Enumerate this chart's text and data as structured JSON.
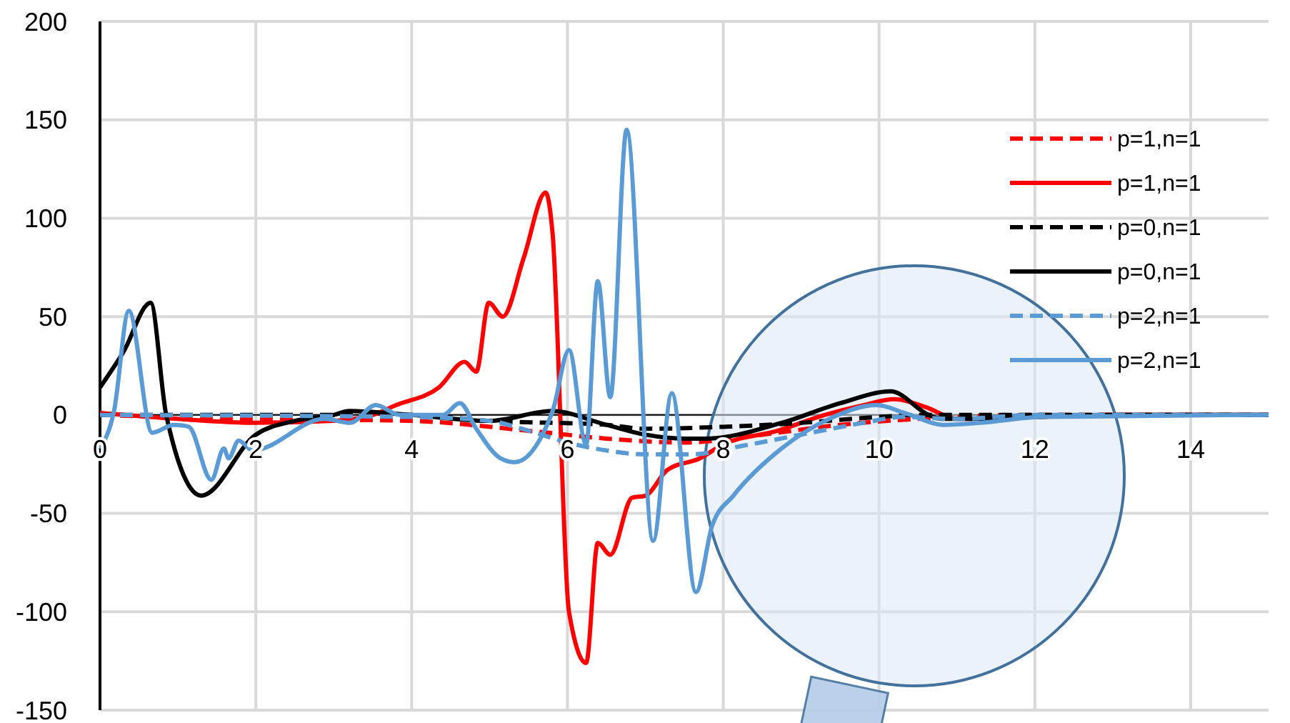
{
  "chart_data": {
    "type": "line",
    "xlim": [
      0,
      15
    ],
    "ylim": [
      -150,
      200
    ],
    "xticks": [
      0,
      2,
      4,
      6,
      8,
      10,
      12,
      14
    ],
    "yticks": [
      -150,
      -100,
      -50,
      0,
      50,
      100,
      150,
      200
    ],
    "grid": true,
    "legend": "top right",
    "series": [
      {
        "name": "p=1,n=1",
        "color": "#ff0000",
        "line_style": "dashed",
        "x": [
          0,
          2,
          4,
          5.5,
          6.5,
          7.5,
          8.5,
          9.5,
          10.5,
          12,
          15
        ],
        "values": [
          0,
          -2,
          -3,
          -8,
          -12,
          -14,
          -10,
          -5,
          -2,
          0,
          0
        ]
      },
      {
        "name": "p=1,n=1",
        "color": "#ff0000",
        "line_style": "solid",
        "x": [
          0,
          1,
          2,
          3,
          3.5,
          3.8,
          4.35,
          4.68,
          4.83,
          4.99,
          5.17,
          5.44,
          5.72,
          5.81,
          6.02,
          6.24,
          6.39,
          6.55,
          6.83,
          7.0,
          7.28,
          7.7,
          8,
          8.7,
          9.3,
          9.8,
          10.2,
          10.6,
          11,
          12,
          13,
          15
        ],
        "values": [
          1,
          -2,
          -4,
          -3,
          0,
          5,
          14,
          27,
          22,
          57,
          50,
          80,
          113,
          92,
          -100,
          -126,
          -65,
          -71,
          -42,
          -41,
          -28,
          -22,
          -15,
          -8,
          0,
          5,
          8,
          4,
          -2,
          -1,
          0,
          0
        ]
      },
      {
        "name": "p=0,n=1",
        "color": "#000000",
        "line_style": "dashed",
        "x": [
          0,
          2,
          4,
          5,
          6.5,
          7,
          8,
          9,
          10,
          10.5,
          12,
          15
        ],
        "values": [
          0,
          0,
          0,
          -3,
          -5,
          -7,
          -6,
          -4,
          -1,
          0,
          0,
          0
        ]
      },
      {
        "name": "p=0,n=1",
        "color": "#000000",
        "line_style": "solid",
        "x": [
          0,
          0.3,
          0.65,
          0.85,
          1.3,
          2,
          2.5,
          3,
          3.2,
          4,
          5,
          5.8,
          6.5,
          7,
          7.5,
          7.77,
          8.75,
          9.5,
          10.15,
          10.64,
          10.8,
          11,
          12,
          13,
          15
        ],
        "values": [
          14,
          32,
          57,
          0,
          -41,
          -10,
          -3,
          0,
          2,
          0,
          -3,
          2,
          -5,
          -10,
          -12,
          -12,
          -4,
          6,
          12,
          0,
          -2,
          -2,
          -1,
          0,
          0
        ]
      },
      {
        "name": "p=2,n=1",
        "color": "#5b9bd5",
        "line_style": "dashed",
        "x": [
          0,
          4,
          5,
          5.5,
          6,
          6.5,
          7,
          7.6,
          8.2,
          9,
          9.8,
          10.3,
          11,
          12,
          15
        ],
        "values": [
          0,
          -1,
          -3,
          -8,
          -14,
          -18,
          -20,
          -20,
          -16,
          -10,
          -4,
          -1,
          -2,
          0,
          0
        ]
      },
      {
        "name": "p=2,n=1",
        "color": "#5b9bd5",
        "line_style": "solid",
        "x": [
          0,
          0.18,
          0.37,
          0.67,
          0.95,
          1.14,
          1.43,
          1.59,
          1.65,
          1.78,
          1.96,
          2.88,
          3.21,
          3.54,
          3.85,
          4.4,
          4.62,
          4.83,
          5.14,
          5.32,
          5.81,
          6.02,
          6.24,
          6.39,
          6.55,
          6.76,
          7.1,
          7.34,
          7.65,
          7.86,
          8.13,
          8.75,
          9.36,
          9.97,
          10.33,
          10.83,
          11.3,
          12.1,
          15
        ],
        "values": [
          -17,
          2,
          53,
          -9,
          -5,
          -6,
          -33,
          -17,
          -22,
          -13,
          -18,
          -2,
          -4,
          5,
          0,
          0,
          6,
          -7,
          -22,
          -24,
          2,
          33,
          -15,
          68,
          9,
          145,
          -64,
          11,
          -90,
          -56,
          -41,
          -17,
          -2,
          5,
          1,
          -5,
          -4,
          -1,
          0
        ]
      }
    ]
  }
}
